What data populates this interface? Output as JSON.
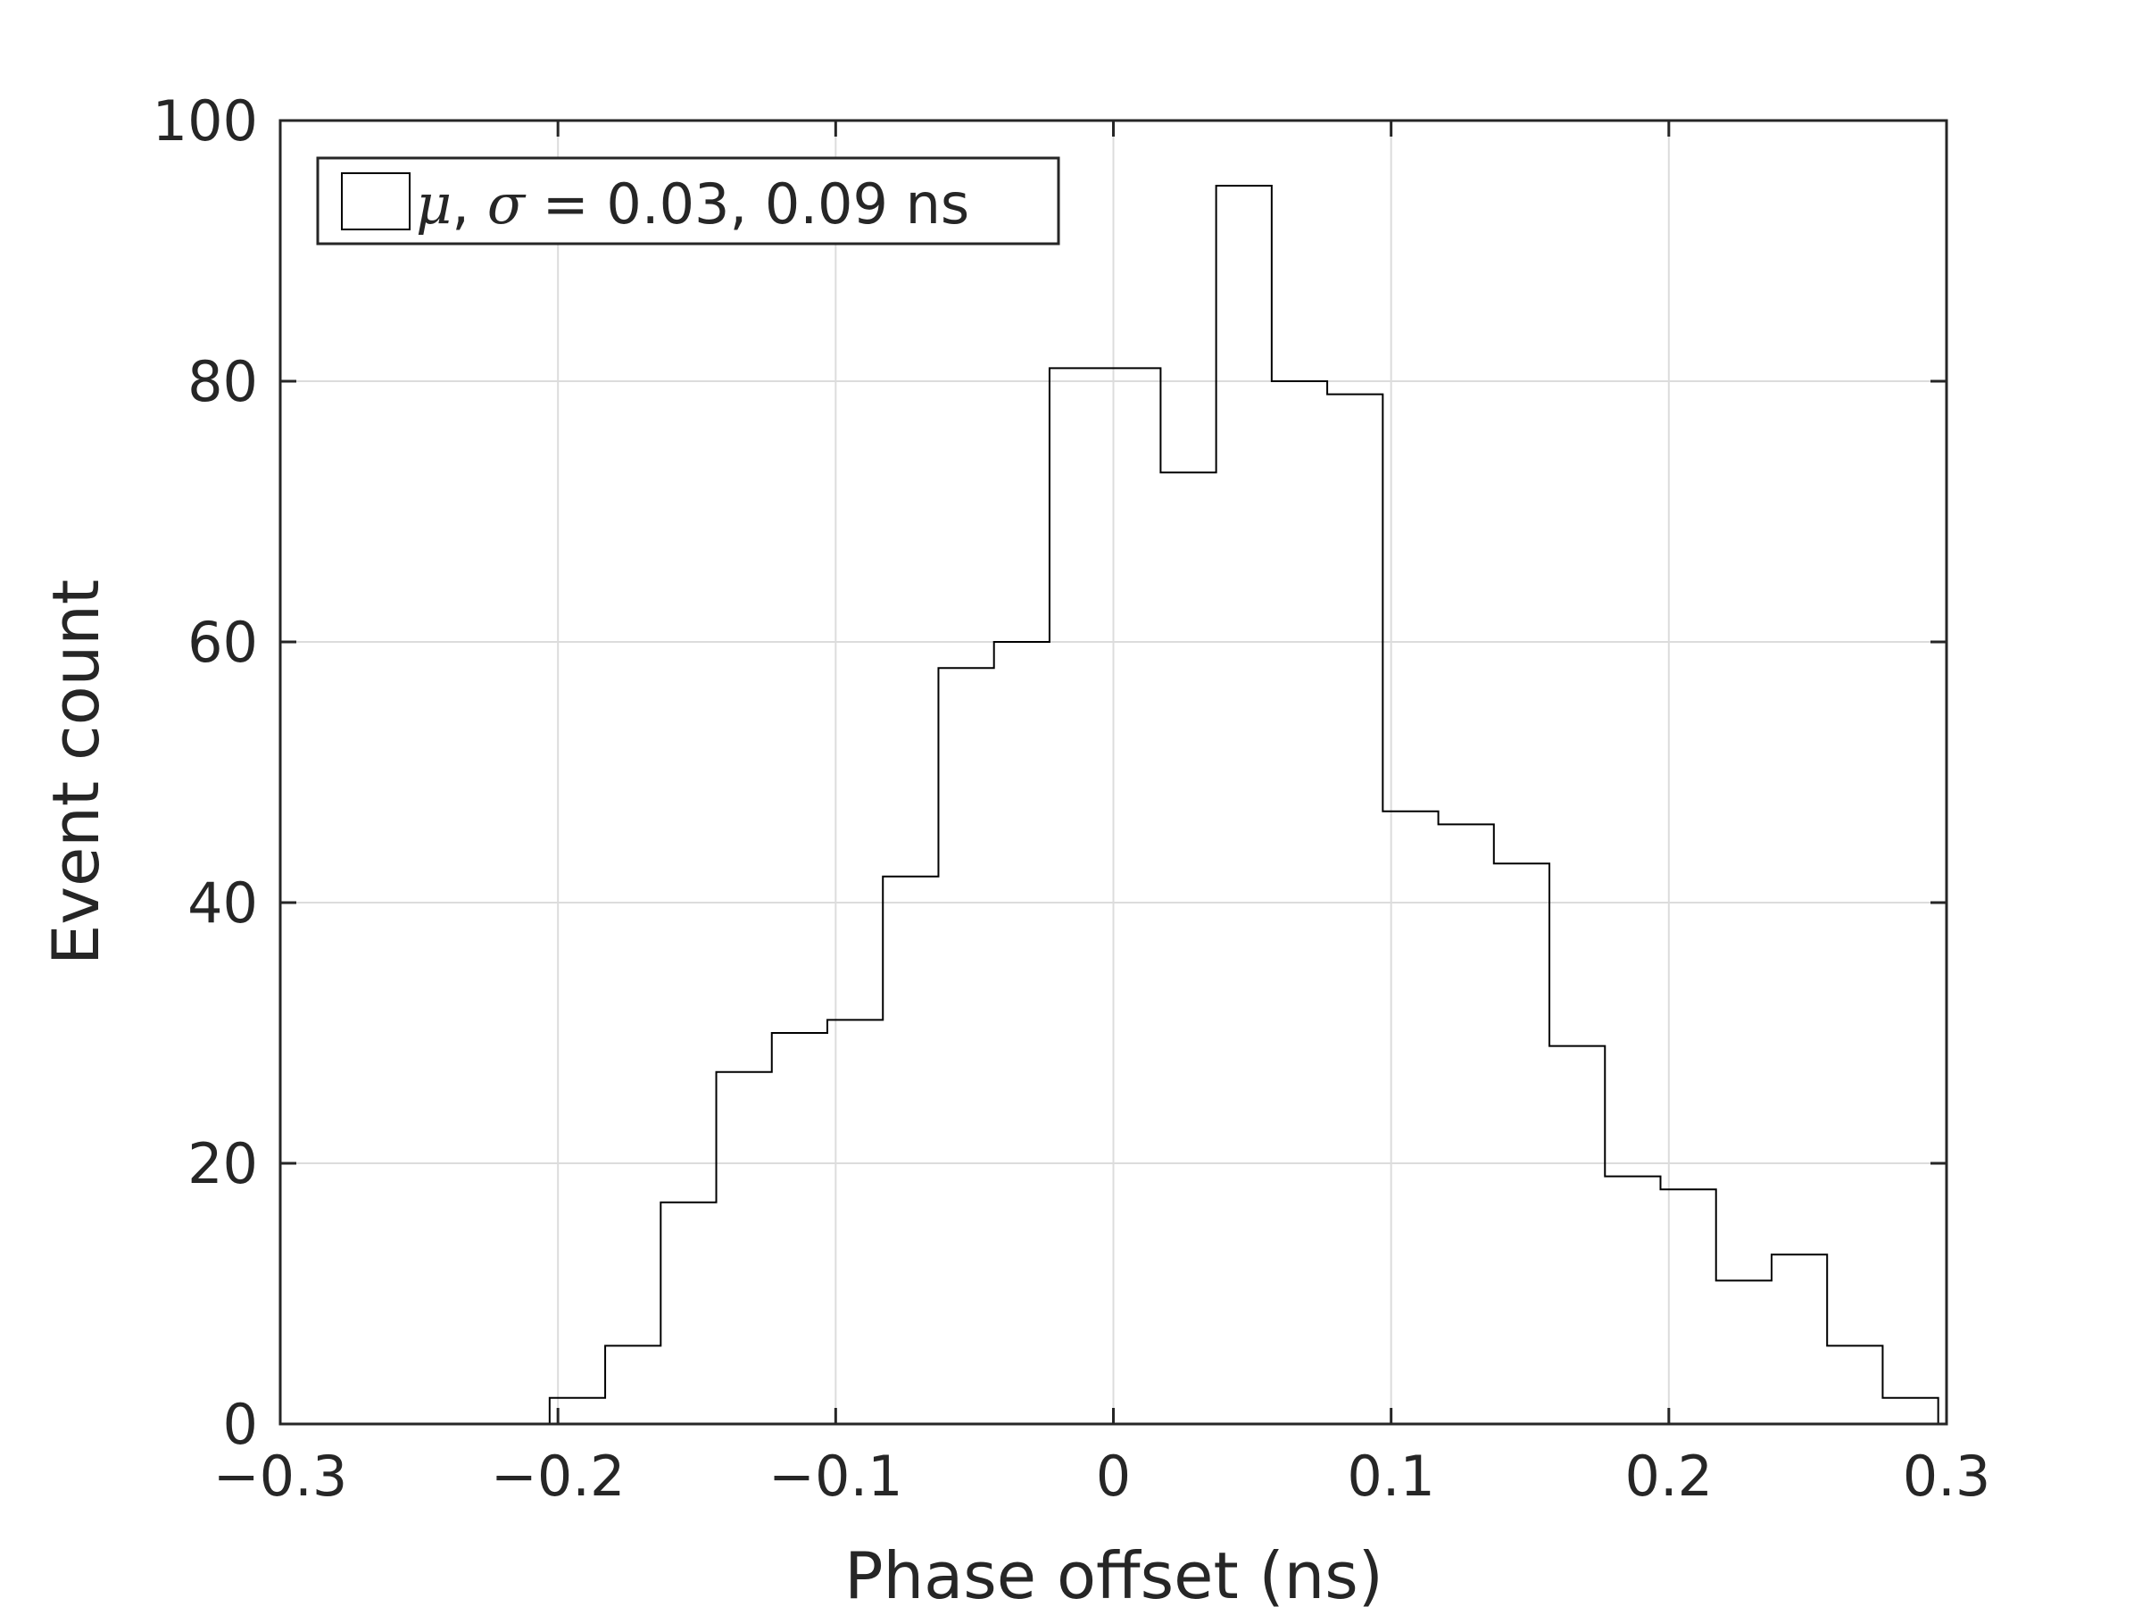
{
  "chart_data": {
    "type": "bar",
    "subtype": "histogram-stairs",
    "xlabel": "Phase offset (ns)",
    "ylabel": "Event count",
    "xlim": [
      -0.3,
      0.3
    ],
    "ylim": [
      0,
      100
    ],
    "xticks": [
      -0.3,
      -0.2,
      -0.1,
      0,
      0.1,
      0.2,
      0.3
    ],
    "xtick_labels": [
      "−0.3",
      "−0.2",
      "−0.1",
      "0",
      "0.1",
      "0.2",
      "0.3"
    ],
    "yticks": [
      0,
      20,
      40,
      60,
      80,
      100
    ],
    "ytick_labels": [
      "0",
      "20",
      "40",
      "60",
      "80",
      "100"
    ],
    "grid": true,
    "legend": {
      "placement": "top-left",
      "mu_label": "μ",
      "sigma_label": "σ",
      "text": " = 0.03, 0.09 ns"
    },
    "bin_start": -0.203,
    "bin_width": 0.02,
    "values": [
      2,
      6,
      17,
      27,
      30,
      31,
      42,
      58,
      60,
      81,
      81,
      73,
      95,
      80,
      79,
      47,
      46,
      43,
      29,
      19,
      18,
      11,
      13,
      6,
      2
    ]
  }
}
